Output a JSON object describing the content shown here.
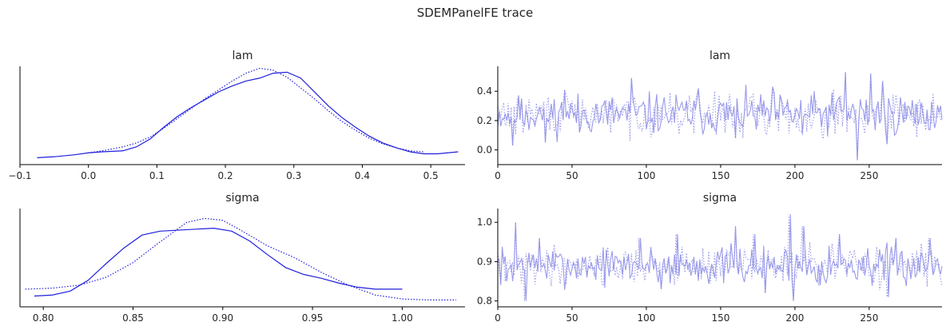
{
  "figure": {
    "title": "SDEMPanelFE trace"
  },
  "colors": {
    "chain": "#1f1fdb",
    "trace": "#8f8fe8",
    "axis": "#000000",
    "text": "#262626"
  },
  "chart_data": [
    {
      "panel": "lam-density",
      "type": "line",
      "title": "lam",
      "xlabel": "",
      "ylabel": "",
      "xlim": [
        -0.1,
        0.55
      ],
      "ylim": [
        0,
        1
      ],
      "x_ticks": [
        -0.1,
        0.0,
        0.1,
        0.2,
        0.3,
        0.4,
        0.5
      ],
      "x_tick_labels": [
        "−0.1",
        "0.0",
        "0.1",
        "0.2",
        "0.3",
        "0.4",
        "0.5"
      ],
      "y_ticks": [],
      "grid": false,
      "series": [
        {
          "style": "solid",
          "x": [
            -0.075,
            -0.05,
            -0.02,
            0.0,
            0.02,
            0.05,
            0.07,
            0.09,
            0.11,
            0.13,
            0.15,
            0.17,
            0.19,
            0.21,
            0.23,
            0.25,
            0.27,
            0.29,
            0.31,
            0.33,
            0.35,
            0.37,
            0.39,
            0.41,
            0.43,
            0.45,
            0.47,
            0.49,
            0.51,
            0.54
          ],
          "y": [
            0.07,
            0.08,
            0.1,
            0.12,
            0.13,
            0.14,
            0.18,
            0.26,
            0.38,
            0.49,
            0.58,
            0.66,
            0.74,
            0.8,
            0.85,
            0.88,
            0.93,
            0.94,
            0.88,
            0.74,
            0.6,
            0.48,
            0.38,
            0.29,
            0.22,
            0.17,
            0.13,
            0.11,
            0.11,
            0.13
          ]
        },
        {
          "style": "dotted",
          "x": [
            0.0,
            0.02,
            0.05,
            0.07,
            0.09,
            0.11,
            0.13,
            0.15,
            0.17,
            0.19,
            0.21,
            0.23,
            0.25,
            0.27,
            0.29,
            0.31,
            0.33,
            0.35,
            0.37,
            0.39,
            0.41,
            0.43,
            0.45,
            0.47,
            0.49
          ],
          "y": [
            0.12,
            0.14,
            0.18,
            0.22,
            0.28,
            0.37,
            0.47,
            0.57,
            0.67,
            0.76,
            0.85,
            0.93,
            0.98,
            0.96,
            0.89,
            0.78,
            0.67,
            0.55,
            0.44,
            0.35,
            0.27,
            0.21,
            0.17,
            0.14,
            0.13
          ]
        }
      ]
    },
    {
      "panel": "lam-trace",
      "type": "line",
      "title": "lam",
      "xlabel": "",
      "ylabel": "",
      "xlim": [
        0,
        299
      ],
      "ylim": [
        -0.1,
        0.57
      ],
      "x_ticks": [
        0,
        50,
        100,
        150,
        200,
        250
      ],
      "x_tick_labels": [
        "0",
        "50",
        "100",
        "150",
        "200",
        "250"
      ],
      "y_ticks": [
        0.0,
        0.2,
        0.4
      ],
      "y_tick_labels": [
        "0.0",
        "0.2",
        "0.4"
      ],
      "grid": false,
      "generator": {
        "n": 300,
        "base": 0.245,
        "amp": 0.095,
        "spikes": [
          [
            10,
            0.03
          ],
          [
            16,
            0.35
          ],
          [
            32,
            0.05
          ],
          [
            45,
            0.41
          ],
          [
            55,
            0.12
          ],
          [
            90,
            0.49
          ],
          [
            135,
            0.42
          ],
          [
            160,
            0.08
          ],
          [
            185,
            0.43
          ],
          [
            205,
            0.11
          ],
          [
            230,
            0.36
          ],
          [
            234,
            0.53
          ],
          [
            242,
            -0.07
          ],
          [
            251,
            0.52
          ],
          [
            259,
            0.47
          ],
          [
            262,
            0.04
          ]
        ]
      },
      "series": [
        {
          "style": "solid",
          "seed": 11
        },
        {
          "style": "dotted",
          "seed": 29
        }
      ]
    },
    {
      "panel": "sigma-density",
      "type": "line",
      "title": "sigma",
      "xlabel": "",
      "ylabel": "",
      "xlim": [
        0.787,
        1.035
      ],
      "ylim": [
        0,
        1
      ],
      "x_ticks": [
        0.8,
        0.85,
        0.9,
        0.95,
        1.0
      ],
      "x_tick_labels": [
        "0.80",
        "0.85",
        "0.90",
        "0.95",
        "1.00"
      ],
      "y_ticks": [],
      "grid": false,
      "series": [
        {
          "style": "solid",
          "x": [
            0.795,
            0.805,
            0.815,
            0.825,
            0.835,
            0.845,
            0.855,
            0.865,
            0.875,
            0.885,
            0.895,
            0.905,
            0.915,
            0.925,
            0.935,
            0.945,
            0.955,
            0.965,
            0.975,
            0.985,
            1.0
          ],
          "y": [
            0.11,
            0.12,
            0.16,
            0.27,
            0.44,
            0.6,
            0.73,
            0.77,
            0.78,
            0.79,
            0.8,
            0.77,
            0.67,
            0.53,
            0.4,
            0.33,
            0.29,
            0.24,
            0.2,
            0.18,
            0.18
          ]
        },
        {
          "style": "dotted",
          "x": [
            0.79,
            0.805,
            0.82,
            0.835,
            0.85,
            0.865,
            0.88,
            0.89,
            0.9,
            0.91,
            0.925,
            0.94,
            0.955,
            0.97,
            0.985,
            1.0,
            1.015,
            1.03
          ],
          "y": [
            0.18,
            0.19,
            0.22,
            0.3,
            0.45,
            0.66,
            0.86,
            0.9,
            0.88,
            0.78,
            0.62,
            0.5,
            0.35,
            0.22,
            0.12,
            0.08,
            0.07,
            0.07
          ]
        }
      ]
    },
    {
      "panel": "sigma-trace",
      "type": "line",
      "title": "sigma",
      "xlabel": "",
      "ylabel": "",
      "xlim": [
        0,
        299
      ],
      "ylim": [
        0.785,
        1.035
      ],
      "x_ticks": [
        0,
        50,
        100,
        150,
        200,
        250
      ],
      "x_tick_labels": [
        "0",
        "50",
        "100",
        "150",
        "200",
        "250"
      ],
      "y_ticks": [
        0.8,
        0.9,
        1.0
      ],
      "y_tick_labels": [
        "0.8",
        "0.9",
        "1.0"
      ],
      "grid": false,
      "generator": {
        "n": 300,
        "base": 0.89,
        "amp": 0.033,
        "spikes": [
          [
            5,
            0.85
          ],
          [
            12,
            1.0
          ],
          [
            18,
            0.8
          ],
          [
            28,
            0.96
          ],
          [
            95,
            0.96
          ],
          [
            110,
            0.83
          ],
          [
            120,
            0.97
          ],
          [
            160,
            0.99
          ],
          [
            172,
            0.97
          ],
          [
            180,
            0.82
          ],
          [
            196,
            1.02
          ],
          [
            199,
            0.8
          ],
          [
            205,
            0.99
          ],
          [
            230,
            0.97
          ],
          [
            262,
            0.81
          ],
          [
            268,
            0.96
          ],
          [
            290,
            0.96
          ]
        ]
      },
      "series": [
        {
          "style": "solid",
          "seed": 7
        },
        {
          "style": "dotted",
          "seed": 41
        }
      ]
    }
  ]
}
